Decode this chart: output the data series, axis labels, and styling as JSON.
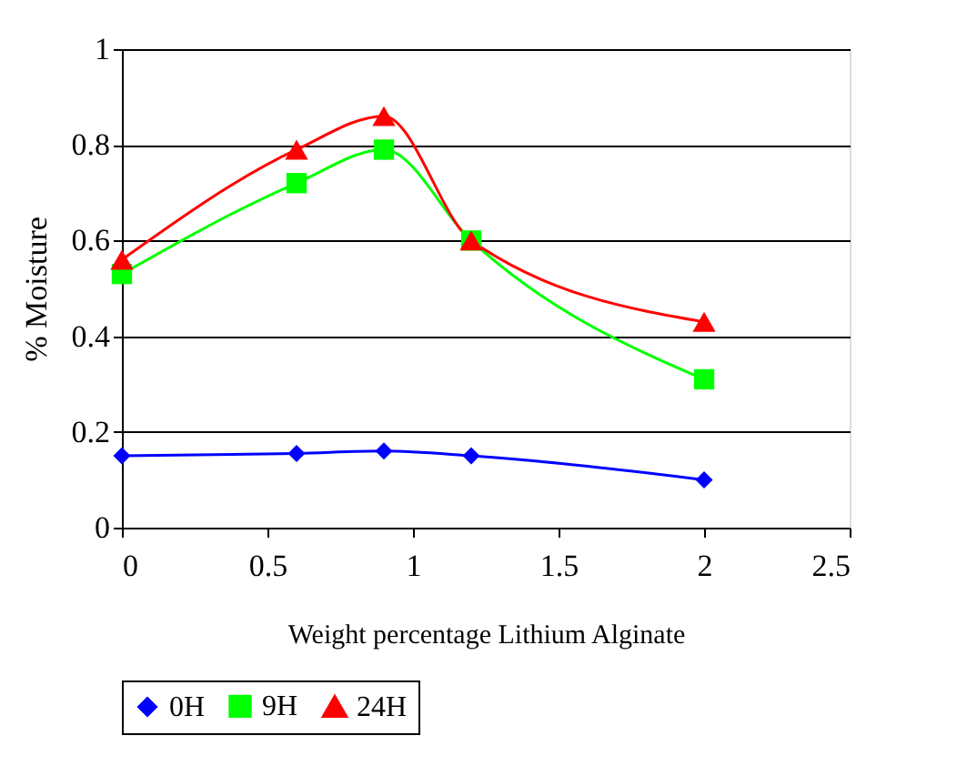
{
  "chart_data": {
    "type": "line",
    "xlabel": "Weight percentage Lithium Alginate",
    "ylabel": "% Moisture",
    "x": [
      0,
      0.6,
      0.9,
      1.2,
      2
    ],
    "series": [
      {
        "name": "0H",
        "color": "#0000ff",
        "marker": "diamond",
        "values": [
          0.15,
          0.155,
          0.16,
          0.15,
          0.1
        ]
      },
      {
        "name": "9H",
        "color": "#00ff00",
        "marker": "square",
        "values": [
          0.53,
          0.72,
          0.79,
          0.6,
          0.31
        ]
      },
      {
        "name": "24H",
        "color": "#ff0000",
        "marker": "triangle",
        "values": [
          0.56,
          0.79,
          0.86,
          0.6,
          0.43
        ]
      }
    ],
    "xlim": [
      0,
      2.5
    ],
    "xticks": [
      0,
      0.5,
      1,
      1.5,
      2,
      2.5
    ],
    "ylim": [
      0,
      1
    ],
    "yticks": [
      0,
      0.2,
      0.4,
      0.6,
      0.8,
      1
    ],
    "grid": "y",
    "legend": "bottom",
    "line_style": "solid"
  }
}
